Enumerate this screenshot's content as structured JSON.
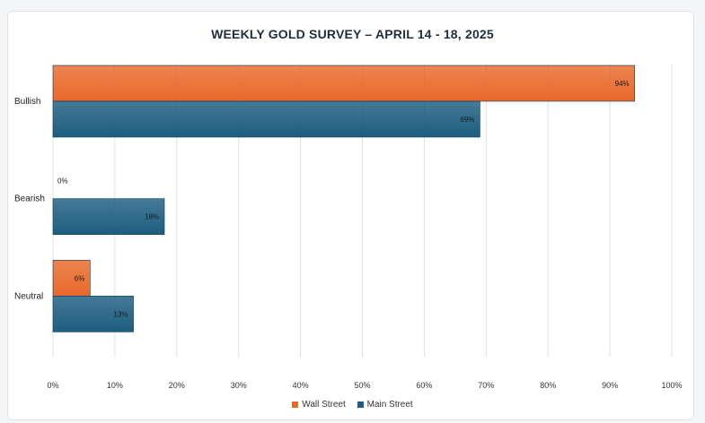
{
  "chart_data": {
    "type": "bar",
    "orientation": "horizontal",
    "title": "WEEKLY GOLD SURVEY – APRIL 14 - 18, 2025",
    "categories": [
      "Bullish",
      "Bearish",
      "Neutral"
    ],
    "series": [
      {
        "name": "Wall Street",
        "color": "#e8692a",
        "values": [
          94,
          0,
          6
        ],
        "labels": [
          "94%",
          "0%",
          "6%"
        ]
      },
      {
        "name": "Main Street",
        "color": "#1d5d80",
        "values": [
          69,
          18,
          13
        ],
        "labels": [
          "69%",
          "18%",
          "13%"
        ]
      }
    ],
    "xlim": [
      0,
      100
    ],
    "xticks": [
      "0%",
      "10%",
      "20%",
      "30%",
      "40%",
      "50%",
      "60%",
      "70%",
      "80%",
      "90%",
      "100%"
    ],
    "grid": true,
    "legend_position": "bottom"
  }
}
